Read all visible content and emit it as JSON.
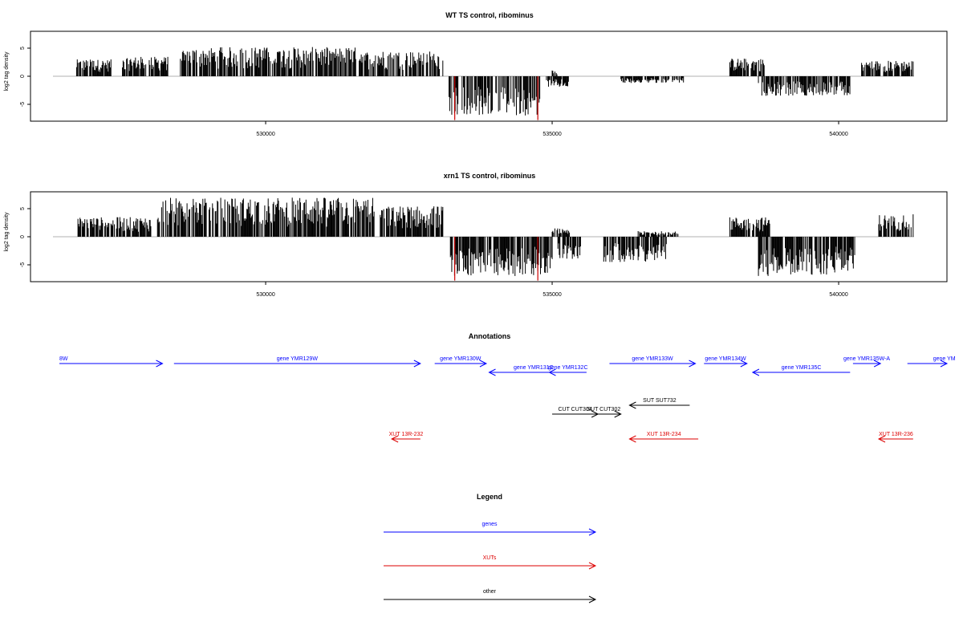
{
  "colors": {
    "axis": "#000000",
    "baseline": "#999999",
    "bar": "#000000",
    "highlight": "#cc0000",
    "gene": "#0000ff",
    "xut": "#dd0000",
    "other": "#000000"
  },
  "x_range": [
    526400,
    541400
  ],
  "x_ticks": [
    {
      "value": 530000,
      "label": "530000"
    },
    {
      "value": 535000,
      "label": "535000"
    },
    {
      "value": 540000,
      "label": "540000"
    }
  ],
  "y_ticks": [
    {
      "value": 5,
      "label": "5"
    },
    {
      "value": 0,
      "label": "0"
    },
    {
      "value": -5,
      "label": "-5"
    }
  ],
  "chart_data": [
    {
      "type": "bar",
      "title": "WT TS control, ribominus",
      "ylabel": "log2 tag density",
      "xlim": [
        526400,
        541400
      ],
      "ylim": [
        -8,
        8
      ],
      "highlight_positions": [
        533300,
        534750
      ],
      "highlight_values": [
        -7.8,
        -7.8
      ],
      "plus_strand_regions": [
        {
          "start": 526700,
          "end": 527300,
          "max": 3.0
        },
        {
          "start": 527500,
          "end": 528300,
          "max": 3.5
        },
        {
          "start": 528500,
          "end": 531700,
          "max": 5.2
        },
        {
          "start": 531700,
          "end": 533100,
          "max": 4.5
        },
        {
          "start": 535000,
          "end": 535100,
          "max": 1.2
        },
        {
          "start": 538100,
          "end": 538700,
          "max": 3.2
        },
        {
          "start": 540400,
          "end": 541300,
          "max": 2.8
        }
      ],
      "minus_strand_regions": [
        {
          "start": 533200,
          "end": 534800,
          "min": -7.0
        },
        {
          "start": 534900,
          "end": 535300,
          "min": -2.0
        },
        {
          "start": 536200,
          "end": 537300,
          "min": -1.2
        },
        {
          "start": 538600,
          "end": 540200,
          "min": -3.5
        }
      ]
    },
    {
      "type": "bar",
      "title": "xrn1 TS control, ribominus",
      "ylabel": "log2 tag density",
      "xlim": [
        526400,
        541400
      ],
      "ylim": [
        -8,
        8
      ],
      "highlight_positions": [
        533300,
        534750
      ],
      "highlight_values": [
        -7.8,
        -7.8
      ],
      "plus_strand_regions": [
        {
          "start": 526700,
          "end": 528000,
          "max": 3.5
        },
        {
          "start": 528100,
          "end": 531900,
          "max": 7.0
        },
        {
          "start": 532000,
          "end": 533100,
          "max": 5.5
        },
        {
          "start": 535000,
          "end": 535300,
          "max": 1.5
        },
        {
          "start": 536500,
          "end": 537200,
          "max": 1.0
        },
        {
          "start": 538100,
          "end": 538800,
          "max": 3.5
        },
        {
          "start": 540700,
          "end": 541300,
          "max": 4.0
        }
      ],
      "minus_strand_regions": [
        {
          "start": 533200,
          "end": 535000,
          "min": -7.0
        },
        {
          "start": 535100,
          "end": 535500,
          "min": -4.0
        },
        {
          "start": 535900,
          "end": 537000,
          "min": -4.5
        },
        {
          "start": 538600,
          "end": 540300,
          "min": -7.0
        }
      ]
    }
  ],
  "annotations": {
    "title": "Annotations",
    "features": [
      {
        "label": "8W",
        "class": "gene",
        "start": 526400,
        "end": 528200,
        "strand": "+",
        "row": 0,
        "label_anchor": "start"
      },
      {
        "label": "gene YMR129W",
        "class": "gene",
        "start": 528400,
        "end": 532700,
        "strand": "+",
        "row": 0
      },
      {
        "label": "gene YMR130W",
        "class": "gene",
        "start": 532950,
        "end": 533850,
        "strand": "+",
        "row": 0
      },
      {
        "label": "gene YMR131C",
        "class": "gene",
        "start": 533900,
        "end": 535450,
        "strand": "-",
        "row": 1
      },
      {
        "label": "gene YMR132C",
        "class": "gene",
        "start": 534950,
        "end": 535600,
        "strand": "-",
        "row": 1
      },
      {
        "label": "gene YMR133W",
        "class": "gene",
        "start": 536000,
        "end": 537500,
        "strand": "+",
        "row": 0
      },
      {
        "label": "gene YMR134W",
        "class": "gene",
        "start": 537650,
        "end": 538400,
        "strand": "+",
        "row": 0
      },
      {
        "label": "gene YMR135C",
        "class": "gene",
        "start": 538500,
        "end": 540200,
        "strand": "-",
        "row": 1
      },
      {
        "label": "gene YMR135W-A",
        "class": "gene",
        "start": 540250,
        "end": 540730,
        "strand": "+",
        "row": 0
      },
      {
        "label": "gene YM",
        "class": "gene",
        "start": 541200,
        "end": 542200,
        "strand": "+",
        "row": 0,
        "label_anchor": "start",
        "label_offset": 32
      },
      {
        "label": "SUT SUT732",
        "class": "other",
        "start": 536350,
        "end": 537400,
        "strand": "-",
        "row": 2
      },
      {
        "label": "CUT CUT304",
        "class": "other",
        "start": 535000,
        "end": 535800,
        "strand": "+",
        "row": 3
      },
      {
        "label": "SUT CUT302",
        "class": "other",
        "start": 535600,
        "end": 536200,
        "strand": "+",
        "row": 3
      },
      {
        "label": "XUT 13R-232",
        "class": "xut",
        "start": 532200,
        "end": 532700,
        "strand": "-",
        "row": 4
      },
      {
        "label": "XUT 13R-234",
        "class": "xut",
        "start": 536350,
        "end": 537550,
        "strand": "-",
        "row": 4
      },
      {
        "label": "XUT 13R-236",
        "class": "xut",
        "start": 540700,
        "end": 541300,
        "strand": "-",
        "row": 4
      }
    ]
  },
  "legend": {
    "title": "Legend",
    "items": [
      {
        "label": "genes",
        "class": "gene"
      },
      {
        "label": "XUTs",
        "class": "xut"
      },
      {
        "label": "other",
        "class": "other"
      }
    ]
  }
}
